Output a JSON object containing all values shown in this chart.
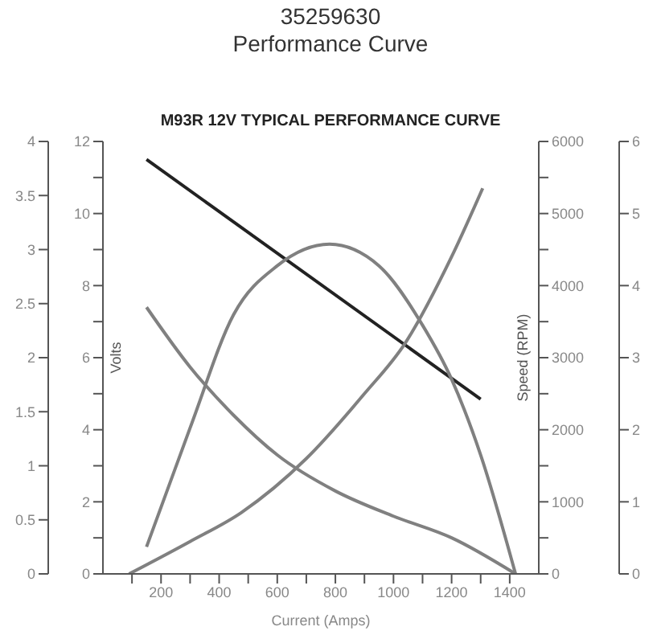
{
  "chart_data": [
    {
      "type": "line",
      "title": "35259630",
      "subtitle": "Performance Curve",
      "annotations": [
        "M93R 12V TYPICAL PERFORMANCE CURVE"
      ],
      "xlabel": "Current (Amps)",
      "ylabel": "Volts",
      "y2label": "Speed (RPM)",
      "marker": "none",
      "line_style": "solid",
      "xlim": [
        0,
        1500
      ],
      "xticks": [
        {
          "value": 100,
          "label": null
        },
        200,
        {
          "value": 300,
          "label": null
        },
        400,
        {
          "value": 500,
          "label": null
        },
        600,
        {
          "value": 700,
          "label": null
        },
        800,
        {
          "value": 900,
          "label": null
        },
        1000,
        {
          "value": 1100,
          "label": null
        },
        1200,
        {
          "value": 1300,
          "label": null
        },
        1400
      ],
      "ylim": [
        0,
        12
      ],
      "yticks": [
        0,
        {
          "value": 1,
          "label": null
        },
        2,
        {
          "value": 3,
          "label": null
        },
        4,
        {
          "value": 5,
          "label": null
        },
        6,
        {
          "value": 7,
          "label": null
        },
        8,
        {
          "value": 9,
          "label": null
        },
        10,
        {
          "value": 11,
          "label": null
        },
        12
      ],
      "y2lim": [
        0,
        6000
      ],
      "y2ticks": [
        0,
        {
          "value": 500,
          "label": null
        },
        1000,
        {
          "value": 1500,
          "label": null
        },
        2000,
        {
          "value": 2500,
          "label": null
        },
        3000,
        {
          "value": 3500,
          "label": null
        },
        4000,
        {
          "value": 4500,
          "label": null
        },
        5000,
        {
          "value": 5500,
          "label": null
        },
        6000
      ],
      "y3lim": [
        0,
        4
      ],
      "y3ticks": [
        0,
        0.5,
        1,
        1.5,
        2,
        2.5,
        3,
        3.5,
        4
      ],
      "series": [
        {
          "color": "#222222",
          "axis": "y",
          "x": [
            150,
            1300
          ],
          "values": [
            11.5,
            4.85
          ]
        },
        {
          "color": "#808080",
          "axis": "y2",
          "x": [
            150,
            300,
            450,
            600,
            800,
            1000,
            1200,
            1420
          ],
          "values": [
            3700,
            2870,
            2200,
            1650,
            1150,
            800,
            500,
            0
          ]
        },
        {
          "color": "#808080",
          "axis": "y3",
          "x": [
            150,
            300,
            450,
            600,
            780,
            950,
            1100,
            1200,
            1300,
            1420
          ],
          "values": [
            0.25,
            1.35,
            2.4,
            2.85,
            3.05,
            2.85,
            2.3,
            1.8,
            1.1,
            0
          ]
        }
      ]
    },
    {
      "type": "line",
      "marker": "none",
      "line_style": "solid",
      "tick_labels": "y",
      "xlim": [
        0,
        1500
      ],
      "ylim": [
        0,
        6
      ],
      "yticks": [
        0,
        1,
        2,
        3,
        4,
        5,
        6
      ],
      "series": [
        {
          "color": "#808080",
          "x": [
            90,
            300,
            476,
            700,
            900,
            1040,
            1200,
            1307
          ],
          "values": [
            0,
            0.45,
            0.85,
            1.6,
            2.5,
            3.2,
            4.4,
            5.35
          ]
        }
      ]
    }
  ]
}
